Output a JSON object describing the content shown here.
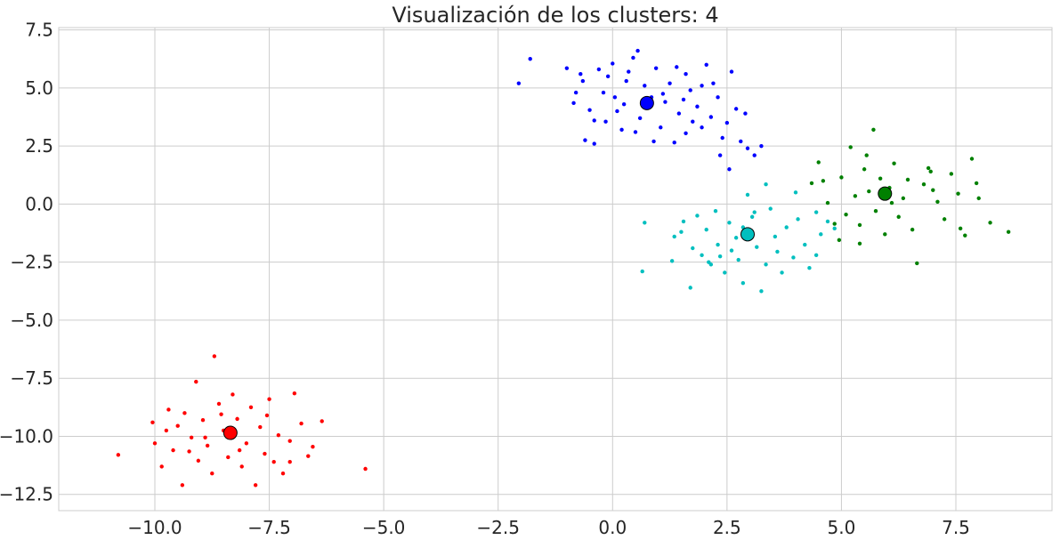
{
  "chart_data": {
    "type": "scatter",
    "title": "Visualización de los clusters: 4",
    "xlabel": "",
    "ylabel": "",
    "xlim": [
      -12.1,
      9.6
    ],
    "ylim": [
      -13.2,
      7.6
    ],
    "grid": true,
    "background": "#ffffff",
    "grid_color": "#cccccc",
    "x_ticks": [
      -10.0,
      -7.5,
      -5.0,
      -2.5,
      0.0,
      2.5,
      5.0,
      7.5
    ],
    "x_tick_labels": [
      "−10.0",
      "−7.5",
      "−5.0",
      "−2.5",
      "0.0",
      "2.5",
      "5.0",
      "7.5"
    ],
    "y_ticks": [
      7.5,
      5.0,
      2.5,
      0.0,
      -2.5,
      -5.0,
      -7.5,
      -10.0,
      -12.5
    ],
    "y_tick_labels": [
      "7.5",
      "5.0",
      "2.5",
      "0.0",
      "−2.5",
      "−5.0",
      "−7.5",
      "−10.0",
      "−12.5"
    ],
    "series": [
      {
        "color": "#0000ff",
        "centroid": [
          0.75,
          4.35
        ],
        "points": [
          [
            -1.8,
            6.25
          ],
          [
            -2.05,
            5.2
          ],
          [
            -1.0,
            5.85
          ],
          [
            -0.85,
            4.35
          ],
          [
            -0.8,
            4.8
          ],
          [
            -0.65,
            5.3
          ],
          [
            -0.5,
            4.05
          ],
          [
            -0.4,
            3.6
          ],
          [
            -0.6,
            2.75
          ],
          [
            -0.4,
            2.6
          ],
          [
            -0.2,
            4.8
          ],
          [
            -0.1,
            5.5
          ],
          [
            0.0,
            6.05
          ],
          [
            0.1,
            4.0
          ],
          [
            0.2,
            3.2
          ],
          [
            0.25,
            4.3
          ],
          [
            0.35,
            5.7
          ],
          [
            0.45,
            6.3
          ],
          [
            0.55,
            6.6
          ],
          [
            0.6,
            3.7
          ],
          [
            0.7,
            5.1
          ],
          [
            0.85,
            4.6
          ],
          [
            0.95,
            5.85
          ],
          [
            1.05,
            3.3
          ],
          [
            1.15,
            4.4
          ],
          [
            1.25,
            5.2
          ],
          [
            1.35,
            2.65
          ],
          [
            1.45,
            3.9
          ],
          [
            1.55,
            4.5
          ],
          [
            1.6,
            5.6
          ],
          [
            1.75,
            3.55
          ],
          [
            1.85,
            4.2
          ],
          [
            1.95,
            5.1
          ],
          [
            2.05,
            6.0
          ],
          [
            2.15,
            3.75
          ],
          [
            2.3,
            4.6
          ],
          [
            2.4,
            2.85
          ],
          [
            2.5,
            3.5
          ],
          [
            2.55,
            1.5
          ],
          [
            2.7,
            4.1
          ],
          [
            2.8,
            2.7
          ],
          [
            2.9,
            3.9
          ],
          [
            2.95,
            2.4
          ],
          [
            3.1,
            2.1
          ],
          [
            3.25,
            2.5
          ],
          [
            2.2,
            5.2
          ],
          [
            1.95,
            3.3
          ],
          [
            1.7,
            4.9
          ],
          [
            1.1,
            4.75
          ],
          [
            0.5,
            3.1
          ],
          [
            0.3,
            5.3
          ],
          [
            -0.15,
            3.55
          ],
          [
            -0.3,
            5.8
          ],
          [
            0.05,
            4.6
          ],
          [
            1.4,
            5.9
          ],
          [
            1.6,
            3.05
          ],
          [
            2.35,
            2.1
          ],
          [
            -0.7,
            5.6
          ],
          [
            0.9,
            2.7
          ],
          [
            2.6,
            5.7
          ]
        ]
      },
      {
        "color": "#00bfbf",
        "centroid": [
          2.95,
          -1.3
        ],
        "points": [
          [
            0.7,
            -0.8
          ],
          [
            0.65,
            -2.9
          ],
          [
            1.3,
            -2.45
          ],
          [
            1.5,
            -1.2
          ],
          [
            1.55,
            -0.75
          ],
          [
            1.7,
            -3.6
          ],
          [
            1.75,
            -1.9
          ],
          [
            1.85,
            -0.5
          ],
          [
            1.95,
            -2.2
          ],
          [
            2.05,
            -1.1
          ],
          [
            2.15,
            -2.6
          ],
          [
            2.25,
            -0.3
          ],
          [
            2.3,
            -1.75
          ],
          [
            2.45,
            -2.95
          ],
          [
            2.55,
            -0.8
          ],
          [
            2.6,
            -2.0
          ],
          [
            2.7,
            -1.45
          ],
          [
            2.85,
            -3.4
          ],
          [
            2.95,
            0.4
          ],
          [
            3.05,
            -0.55
          ],
          [
            3.15,
            -1.85
          ],
          [
            3.25,
            -3.75
          ],
          [
            3.35,
            -2.6
          ],
          [
            3.45,
            -0.2
          ],
          [
            3.55,
            -1.4
          ],
          [
            3.7,
            -2.95
          ],
          [
            3.8,
            -1.0
          ],
          [
            3.95,
            -2.3
          ],
          [
            4.05,
            -0.65
          ],
          [
            4.2,
            -1.75
          ],
          [
            4.3,
            -2.75
          ],
          [
            4.45,
            -0.35
          ],
          [
            4.55,
            -1.3
          ],
          [
            4.7,
            -0.75
          ],
          [
            4.85,
            -1.05
          ],
          [
            4.0,
            0.5
          ],
          [
            3.35,
            0.85
          ],
          [
            2.1,
            -2.5
          ],
          [
            1.35,
            -1.4
          ],
          [
            2.85,
            -1.0
          ],
          [
            3.6,
            -2.05
          ],
          [
            2.35,
            -2.25
          ],
          [
            3.1,
            -0.35
          ],
          [
            2.75,
            -2.4
          ],
          [
            4.45,
            -2.2
          ]
        ]
      },
      {
        "color": "#008000",
        "centroid": [
          5.95,
          0.45
        ],
        "points": [
          [
            4.35,
            0.9
          ],
          [
            4.5,
            1.8
          ],
          [
            4.7,
            0.05
          ],
          [
            4.85,
            -0.85
          ],
          [
            5.0,
            1.15
          ],
          [
            5.1,
            -0.45
          ],
          [
            5.2,
            2.45
          ],
          [
            5.3,
            0.35
          ],
          [
            5.4,
            -0.9
          ],
          [
            5.5,
            1.5
          ],
          [
            5.6,
            0.55
          ],
          [
            5.7,
            3.2
          ],
          [
            5.75,
            -0.3
          ],
          [
            5.85,
            1.1
          ],
          [
            5.95,
            -1.3
          ],
          [
            6.05,
            0.7
          ],
          [
            6.15,
            1.75
          ],
          [
            6.25,
            -0.55
          ],
          [
            6.35,
            0.25
          ],
          [
            6.45,
            1.05
          ],
          [
            6.55,
            -1.1
          ],
          [
            6.65,
            -2.55
          ],
          [
            6.8,
            0.85
          ],
          [
            6.95,
            1.4
          ],
          [
            7.1,
            0.1
          ],
          [
            7.25,
            -0.65
          ],
          [
            7.4,
            1.3
          ],
          [
            7.55,
            0.45
          ],
          [
            7.7,
            -1.35
          ],
          [
            7.85,
            1.95
          ],
          [
            8.0,
            0.25
          ],
          [
            8.25,
            -0.8
          ],
          [
            8.65,
            -1.2
          ],
          [
            7.6,
            -1.05
          ],
          [
            6.9,
            1.55
          ],
          [
            5.4,
            -1.7
          ],
          [
            4.95,
            -1.55
          ],
          [
            4.6,
            1.0
          ],
          [
            7.0,
            0.6
          ],
          [
            7.95,
            0.9
          ],
          [
            6.1,
            0.05
          ],
          [
            5.55,
            2.1
          ]
        ]
      },
      {
        "color": "#ff0000",
        "centroid": [
          -8.35,
          -9.85
        ],
        "points": [
          [
            -10.8,
            -10.8
          ],
          [
            -10.05,
            -9.4
          ],
          [
            -10.0,
            -10.3
          ],
          [
            -9.85,
            -11.3
          ],
          [
            -9.7,
            -8.85
          ],
          [
            -9.6,
            -10.6
          ],
          [
            -9.5,
            -9.55
          ],
          [
            -9.4,
            -12.1
          ],
          [
            -9.35,
            -9.0
          ],
          [
            -9.2,
            -10.05
          ],
          [
            -9.1,
            -7.65
          ],
          [
            -9.05,
            -11.05
          ],
          [
            -8.95,
            -9.3
          ],
          [
            -8.85,
            -10.4
          ],
          [
            -8.75,
            -11.6
          ],
          [
            -8.7,
            -6.55
          ],
          [
            -8.6,
            -8.6
          ],
          [
            -8.5,
            -9.75
          ],
          [
            -8.4,
            -10.9
          ],
          [
            -8.3,
            -8.2
          ],
          [
            -8.2,
            -9.25
          ],
          [
            -8.1,
            -11.3
          ],
          [
            -8.0,
            -10.3
          ],
          [
            -7.9,
            -8.75
          ],
          [
            -7.8,
            -12.1
          ],
          [
            -7.7,
            -9.6
          ],
          [
            -7.6,
            -10.75
          ],
          [
            -7.5,
            -8.4
          ],
          [
            -7.4,
            -11.1
          ],
          [
            -7.3,
            -9.95
          ],
          [
            -7.2,
            -11.6
          ],
          [
            -7.05,
            -10.2
          ],
          [
            -6.95,
            -8.15
          ],
          [
            -6.8,
            -9.45
          ],
          [
            -6.65,
            -10.85
          ],
          [
            -6.55,
            -10.45
          ],
          [
            -6.35,
            -9.35
          ],
          [
            -5.4,
            -11.4
          ],
          [
            -9.75,
            -9.75
          ],
          [
            -8.9,
            -10.05
          ],
          [
            -8.15,
            -10.6
          ],
          [
            -7.55,
            -9.1
          ],
          [
            -9.25,
            -10.65
          ],
          [
            -7.05,
            -11.1
          ],
          [
            -8.55,
            -9.05
          ]
        ]
      }
    ]
  }
}
